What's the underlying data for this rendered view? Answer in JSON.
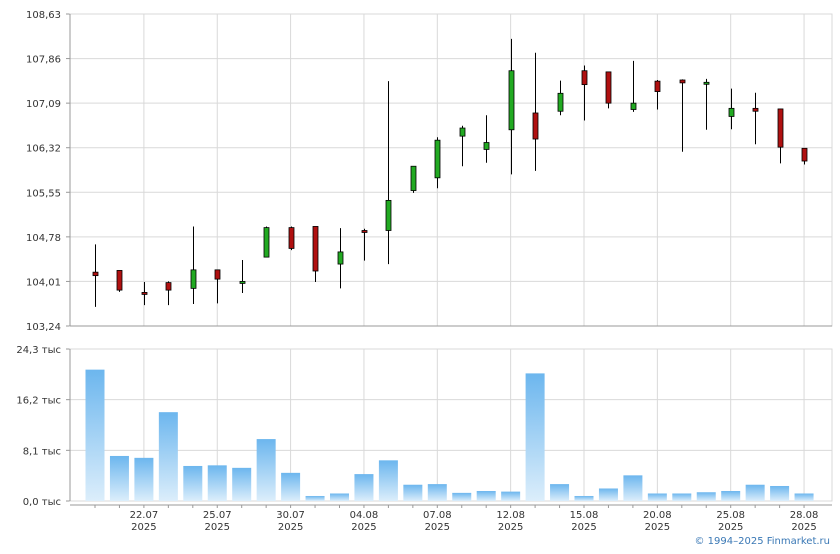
{
  "copyright": "© 1994–2025 Finmarket.ru",
  "colors": {
    "up": "#22aa22",
    "down": "#b01010",
    "volume_top": "#6cb6ee",
    "volume_bottom": "#dceefb",
    "grid": "#d9d9d9",
    "axis": "#999999"
  },
  "chart_data": [
    {
      "type": "candlestick",
      "title": "",
      "yticks": [
        "108,63",
        "107,86",
        "107,09",
        "106,32",
        "105,55",
        "104,78",
        "104,01",
        "103,24"
      ],
      "ylim": [
        103.24,
        108.63
      ],
      "grid": true,
      "ohlc": [
        {
          "o": 104.17,
          "h": 104.65,
          "l": 103.57,
          "c": 104.11
        },
        {
          "o": 104.2,
          "h": 104.2,
          "l": 103.83,
          "c": 103.86
        },
        {
          "o": 103.82,
          "h": 104.0,
          "l": 103.6,
          "c": 103.79
        },
        {
          "o": 103.99,
          "h": 104.01,
          "l": 103.6,
          "c": 103.86
        },
        {
          "o": 103.89,
          "h": 104.96,
          "l": 103.62,
          "c": 104.21
        },
        {
          "o": 104.21,
          "h": 104.21,
          "l": 103.63,
          "c": 104.05
        },
        {
          "o": 104.01,
          "h": 104.38,
          "l": 103.81,
          "c": 104.01
        },
        {
          "o": 104.43,
          "h": 104.96,
          "l": 104.43,
          "c": 104.94
        },
        {
          "o": 104.94,
          "h": 104.96,
          "l": 104.55,
          "c": 104.58
        },
        {
          "o": 104.96,
          "h": 104.96,
          "l": 104.0,
          "c": 104.19
        },
        {
          "o": 104.31,
          "h": 104.93,
          "l": 103.89,
          "c": 104.52
        },
        {
          "o": 104.89,
          "h": 104.92,
          "l": 104.37,
          "c": 104.87
        },
        {
          "o": 104.89,
          "h": 107.47,
          "l": 104.31,
          "c": 105.41
        },
        {
          "o": 105.58,
          "h": 106.0,
          "l": 105.54,
          "c": 106.0
        },
        {
          "o": 105.8,
          "h": 106.5,
          "l": 105.62,
          "c": 106.45
        },
        {
          "o": 106.52,
          "h": 106.7,
          "l": 106.0,
          "c": 106.66
        },
        {
          "o": 106.29,
          "h": 106.88,
          "l": 106.06,
          "c": 106.41
        },
        {
          "o": 106.63,
          "h": 108.2,
          "l": 105.86,
          "c": 107.65
        },
        {
          "o": 106.92,
          "h": 107.96,
          "l": 105.92,
          "c": 106.47
        },
        {
          "o": 106.95,
          "h": 107.48,
          "l": 106.88,
          "c": 107.26
        },
        {
          "o": 107.65,
          "h": 107.74,
          "l": 106.79,
          "c": 107.41
        },
        {
          "o": 107.63,
          "h": 107.63,
          "l": 107.0,
          "c": 107.09
        },
        {
          "o": 106.98,
          "h": 107.82,
          "l": 106.94,
          "c": 107.09
        },
        {
          "o": 107.47,
          "h": 107.49,
          "l": 106.98,
          "c": 107.29
        },
        {
          "o": 107.49,
          "h": 107.5,
          "l": 106.25,
          "c": 107.44
        },
        {
          "o": 107.45,
          "h": 107.51,
          "l": 106.63,
          "c": 107.45
        },
        {
          "o": 106.86,
          "h": 107.34,
          "l": 106.64,
          "c": 107.0
        },
        {
          "o": 107.0,
          "h": 107.27,
          "l": 106.38,
          "c": 106.95
        },
        {
          "o": 106.99,
          "h": 106.99,
          "l": 106.05,
          "c": 106.33
        },
        {
          "o": 106.31,
          "h": 106.31,
          "l": 106.03,
          "c": 106.09
        }
      ]
    },
    {
      "type": "bar",
      "title": "",
      "yticks": [
        "24,3 тыс",
        "16,2 тыс",
        "8,1 тыс",
        "0,0 тыс"
      ],
      "ylim": [
        0,
        24.3
      ],
      "unit": "тыс",
      "grid": true,
      "values": [
        21.0,
        7.2,
        6.9,
        14.2,
        5.6,
        5.7,
        5.3,
        9.9,
        4.5,
        0.8,
        1.2,
        4.3,
        6.5,
        2.6,
        2.7,
        1.3,
        1.6,
        1.5,
        20.4,
        2.7,
        0.8,
        2.0,
        4.1,
        1.2,
        1.2,
        1.4,
        1.6,
        2.6,
        2.4,
        1.2
      ]
    }
  ],
  "x_axis": {
    "labels": [
      {
        "index": 2,
        "date": "22.07",
        "year": "2025"
      },
      {
        "index": 5,
        "date": "25.07",
        "year": "2025"
      },
      {
        "index": 8,
        "date": "30.07",
        "year": "2025"
      },
      {
        "index": 11,
        "date": "04.08",
        "year": "2025"
      },
      {
        "index": 14,
        "date": "07.08",
        "year": "2025"
      },
      {
        "index": 17,
        "date": "12.08",
        "year": "2025"
      },
      {
        "index": 20,
        "date": "15.08",
        "year": "2025"
      },
      {
        "index": 23,
        "date": "20.08",
        "year": "2025"
      },
      {
        "index": 26,
        "date": "25.08",
        "year": "2025"
      },
      {
        "index": 29,
        "date": "28.08",
        "year": "2025"
      }
    ]
  }
}
